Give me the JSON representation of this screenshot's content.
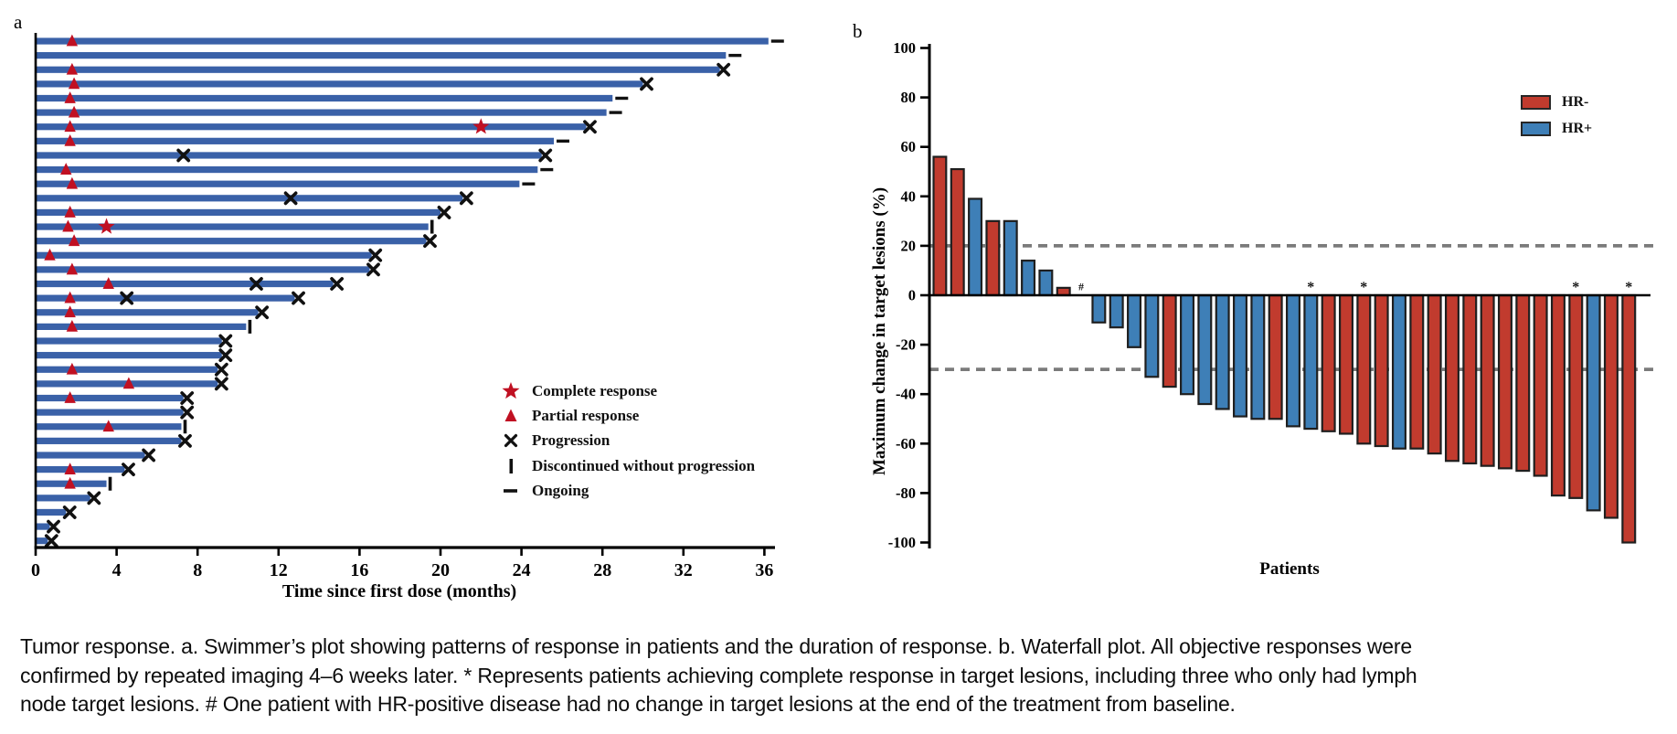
{
  "panel_a": {
    "label": "a"
  },
  "panel_b": {
    "label": "b"
  },
  "caption": {
    "lines": [
      "Tumor response. a. Swimmer’s plot showing patterns of response in patients and the duration of response. b. Waterfall plot. All objective responses were",
      "confirmed by repeated imaging 4–6 weeks later. * Represents patients achieving complete response in target lesions, including three who only had lymph",
      "node target lesions. # One patient with HR-positive disease had no change in target lesions at the end of the treatment from baseline."
    ]
  },
  "chart_data": [
    {
      "type": "bar",
      "subtype": "swimmer",
      "title": "Swimmer plot of duration of treatment",
      "xlabel": "Time since first dose (months)",
      "xlim": [
        0,
        37.5
      ],
      "x_ticks": [
        0,
        4,
        8,
        12,
        16,
        20,
        24,
        28,
        32,
        36
      ],
      "grid": false,
      "bar_color": "#3a61a8",
      "marker_color": "#c01022",
      "event_color": "#111111",
      "legend_position": "right-middle",
      "legend": [
        {
          "icon": "star",
          "label": "Complete response"
        },
        {
          "icon": "triangle",
          "label": "Partial response"
        },
        {
          "icon": "x",
          "label": "Progression"
        },
        {
          "icon": "bar",
          "label": "Discontinued without progression"
        },
        {
          "icon": "dash",
          "label": "Ongoing"
        }
      ],
      "patients": [
        {
          "months": 36.2,
          "partial_response_at": 1.8,
          "end": "ongoing"
        },
        {
          "months": 34.1,
          "end": "ongoing"
        },
        {
          "months": 33.8,
          "partial_response_at": 1.8,
          "end": "progression"
        },
        {
          "months": 30.0,
          "partial_response_at": 1.9,
          "end": "progression"
        },
        {
          "months": 28.5,
          "partial_response_at": 1.7,
          "end": "ongoing"
        },
        {
          "months": 28.2,
          "partial_response_at": 1.9,
          "end": "ongoing"
        },
        {
          "months": 27.2,
          "partial_response_at": 1.7,
          "complete_response_at": 22.0,
          "end": "progression"
        },
        {
          "months": 25.6,
          "partial_response_at": 1.7,
          "end": "ongoing"
        },
        {
          "months": 25.0,
          "progression_at": [
            7.3
          ],
          "end": "progression"
        },
        {
          "months": 24.8,
          "partial_response_at": 1.5,
          "end": "ongoing"
        },
        {
          "months": 23.9,
          "partial_response_at": 1.8,
          "end": "ongoing"
        },
        {
          "months": 21.1,
          "progression_at": [
            12.6
          ],
          "end": "progression"
        },
        {
          "months": 20.0,
          "partial_response_at": 1.7,
          "end": "progression"
        },
        {
          "months": 19.4,
          "partial_response_at": 1.6,
          "complete_response_at": 3.5,
          "end": "discontinued"
        },
        {
          "months": 19.3,
          "partial_response_at": 1.9,
          "end": "progression"
        },
        {
          "months": 16.6,
          "partial_response_at": 0.7,
          "end": "progression"
        },
        {
          "months": 16.5,
          "partial_response_at": 1.8,
          "end": "progression"
        },
        {
          "months": 14.7,
          "partial_response_at": 3.6,
          "progression_at": [
            10.9
          ],
          "end": "progression"
        },
        {
          "months": 12.8,
          "partial_response_at": 1.7,
          "progression_at": [
            4.5
          ],
          "end": "progression"
        },
        {
          "months": 11.0,
          "partial_response_at": 1.7,
          "end": "progression"
        },
        {
          "months": 10.4,
          "partial_response_at": 1.8,
          "end": "discontinued"
        },
        {
          "months": 9.2,
          "end": "progression"
        },
        {
          "months": 9.2,
          "end": "progression"
        },
        {
          "months": 9.0,
          "partial_response_at": 1.8,
          "end": "progression"
        },
        {
          "months": 9.0,
          "partial_response_at": 4.6,
          "end": "progression"
        },
        {
          "months": 7.3,
          "partial_response_at": 1.7,
          "end": "progression"
        },
        {
          "months": 7.3,
          "end": "progression"
        },
        {
          "months": 7.2,
          "partial_response_at": 3.6,
          "end": "discontinued"
        },
        {
          "months": 7.2,
          "end": "progression"
        },
        {
          "months": 5.4,
          "end": "progression"
        },
        {
          "months": 4.4,
          "partial_response_at": 1.7,
          "end": "progression"
        },
        {
          "months": 3.5,
          "partial_response_at": 1.7,
          "end": "discontinued"
        },
        {
          "months": 2.7,
          "end": "progression"
        },
        {
          "months": 1.5,
          "end": "progression"
        },
        {
          "months": 0.7,
          "end": "progression"
        },
        {
          "months": 0.6,
          "end": "progression"
        }
      ]
    },
    {
      "type": "bar",
      "subtype": "waterfall",
      "title": "Waterfall plot of maximum change in target lesions",
      "ylabel": "Maximum change in target lesions (%)",
      "xlabel": "Patients",
      "ylim": [
        -100,
        100
      ],
      "y_ticks": [
        100,
        80,
        60,
        40,
        20,
        0,
        -20,
        -40,
        -60,
        -80,
        -100
      ],
      "grid": false,
      "reference_lines": [
        20,
        -30
      ],
      "reference_line_color": "#7b7b7b",
      "legend_position": "top-right",
      "legend": [
        {
          "label": "HR-",
          "color": "#c13b2e"
        },
        {
          "label": "HR+",
          "color": "#3e7fb7"
        }
      ],
      "bars": [
        {
          "v": 56,
          "g": "HR-"
        },
        {
          "v": 51,
          "g": "HR-"
        },
        {
          "v": 39,
          "g": "HR+"
        },
        {
          "v": 30,
          "g": "HR-"
        },
        {
          "v": 30,
          "g": "HR+"
        },
        {
          "v": 14,
          "g": "HR+"
        },
        {
          "v": 10,
          "g": "HR+"
        },
        {
          "v": 3,
          "g": "HR-"
        },
        {
          "v": 0,
          "g": "HR+",
          "mark": "#"
        },
        {
          "v": -11,
          "g": "HR+"
        },
        {
          "v": -13,
          "g": "HR+"
        },
        {
          "v": -21,
          "g": "HR+"
        },
        {
          "v": -33,
          "g": "HR+"
        },
        {
          "v": -37,
          "g": "HR-"
        },
        {
          "v": -40,
          "g": "HR+"
        },
        {
          "v": -44,
          "g": "HR+"
        },
        {
          "v": -46,
          "g": "HR+"
        },
        {
          "v": -49,
          "g": "HR+"
        },
        {
          "v": -50,
          "g": "HR+"
        },
        {
          "v": -50,
          "g": "HR-"
        },
        {
          "v": -53,
          "g": "HR+"
        },
        {
          "v": -54,
          "g": "HR+",
          "mark": "*"
        },
        {
          "v": -55,
          "g": "HR-"
        },
        {
          "v": -56,
          "g": "HR-"
        },
        {
          "v": -60,
          "g": "HR-",
          "mark": "*"
        },
        {
          "v": -61,
          "g": "HR-"
        },
        {
          "v": -62,
          "g": "HR+"
        },
        {
          "v": -62,
          "g": "HR-"
        },
        {
          "v": -64,
          "g": "HR-"
        },
        {
          "v": -67,
          "g": "HR-"
        },
        {
          "v": -68,
          "g": "HR-"
        },
        {
          "v": -69,
          "g": "HR-"
        },
        {
          "v": -70,
          "g": "HR-"
        },
        {
          "v": -71,
          "g": "HR-"
        },
        {
          "v": -73,
          "g": "HR-"
        },
        {
          "v": -81,
          "g": "HR-"
        },
        {
          "v": -82,
          "g": "HR-",
          "mark": "*"
        },
        {
          "v": -87,
          "g": "HR+"
        },
        {
          "v": -90,
          "g": "HR-"
        },
        {
          "v": -100,
          "g": "HR-",
          "mark": "*"
        }
      ]
    }
  ]
}
